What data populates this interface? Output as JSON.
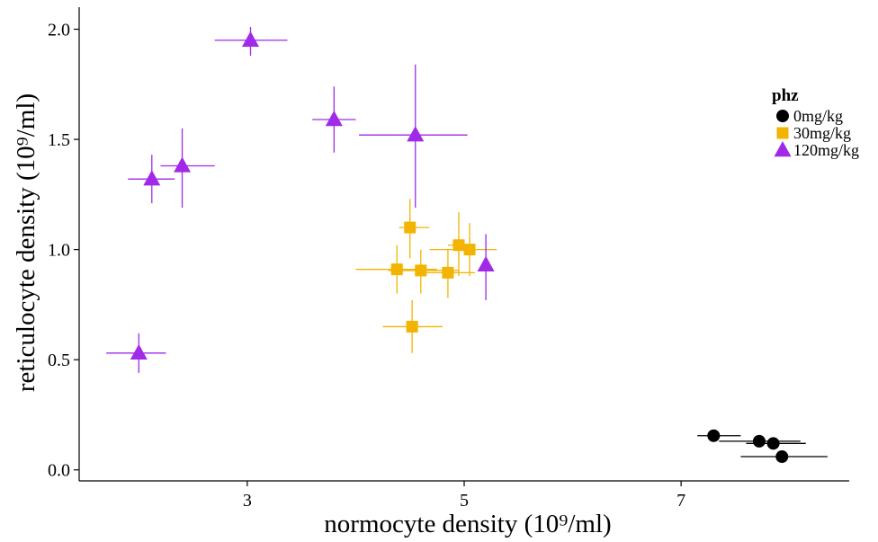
{
  "chart_data": {
    "type": "scatter",
    "xlabel": "normocyte density (10⁹/ml)",
    "ylabel": "reticulocyte density (10⁹/ml)",
    "xlim": [
      1.45,
      8.55
    ],
    "ylim": [
      -0.05,
      2.1
    ],
    "x_ticks": [
      3,
      5,
      7
    ],
    "y_ticks": [
      0.0,
      0.5,
      1.0,
      1.5,
      2.0
    ],
    "x_tick_labels": [
      "3",
      "5",
      "7"
    ],
    "y_tick_labels": [
      "0.0",
      "0.5",
      "1.0",
      "1.5",
      "2.0"
    ],
    "grid": false,
    "legend": {
      "title": "phz",
      "position": "top-right"
    },
    "series": [
      {
        "name": "0mg/kg",
        "marker": "circle",
        "color": "#000000",
        "points": [
          {
            "x": 7.3,
            "y": 0.155,
            "xerr": [
              7.15,
              7.55
            ],
            "yerr": [
              0.155,
              0.155
            ]
          },
          {
            "x": 7.72,
            "y": 0.13,
            "xerr": [
              7.35,
              8.1
            ],
            "yerr": [
              0.13,
              0.13
            ]
          },
          {
            "x": 7.85,
            "y": 0.12,
            "xerr": [
              7.6,
              8.15
            ],
            "yerr": [
              0.12,
              0.12
            ]
          },
          {
            "x": 7.93,
            "y": 0.06,
            "xerr": [
              7.55,
              8.35
            ],
            "yerr": [
              0.06,
              0.06
            ]
          }
        ]
      },
      {
        "name": "30mg/kg",
        "marker": "square",
        "color": "#F2B400",
        "points": [
          {
            "x": 4.52,
            "y": 0.65,
            "xerr": [
              4.25,
              4.8
            ],
            "yerr": [
              0.53,
              0.77
            ]
          },
          {
            "x": 4.38,
            "y": 0.91,
            "xerr": [
              4.0,
              4.75
            ],
            "yerr": [
              0.8,
              1.02
            ]
          },
          {
            "x": 4.5,
            "y": 1.1,
            "xerr": [
              4.4,
              4.68
            ],
            "yerr": [
              0.96,
              1.23
            ]
          },
          {
            "x": 4.6,
            "y": 0.905,
            "xerr": [
              4.3,
              4.95
            ],
            "yerr": [
              0.8,
              1.0
            ]
          },
          {
            "x": 4.85,
            "y": 0.895,
            "xerr": [
              4.65,
              5.1
            ],
            "yerr": [
              0.78,
              1.0
            ]
          },
          {
            "x": 4.95,
            "y": 1.02,
            "xerr": [
              4.85,
              5.08
            ],
            "yerr": [
              0.88,
              1.17
            ]
          },
          {
            "x": 5.05,
            "y": 1.0,
            "xerr": [
              4.68,
              5.3
            ],
            "yerr": [
              0.88,
              1.12
            ]
          }
        ]
      },
      {
        "name": "120mg/kg",
        "marker": "triangle",
        "color": "#A02AE8",
        "points": [
          {
            "x": 2.0,
            "y": 0.53,
            "xerr": [
              1.7,
              2.25
            ],
            "yerr": [
              0.44,
              0.62
            ]
          },
          {
            "x": 2.12,
            "y": 1.32,
            "xerr": [
              1.9,
              2.33
            ],
            "yerr": [
              1.21,
              1.43
            ]
          },
          {
            "x": 2.4,
            "y": 1.38,
            "xerr": [
              2.2,
              2.7
            ],
            "yerr": [
              1.19,
              1.55
            ]
          },
          {
            "x": 3.03,
            "y": 1.95,
            "xerr": [
              2.7,
              3.37
            ],
            "yerr": [
              1.88,
              2.01
            ]
          },
          {
            "x": 3.8,
            "y": 1.59,
            "xerr": [
              3.6,
              4.0
            ],
            "yerr": [
              1.44,
              1.74
            ]
          },
          {
            "x": 4.55,
            "y": 1.52,
            "xerr": [
              4.03,
              5.03
            ],
            "yerr": [
              1.19,
              1.84
            ]
          },
          {
            "x": 5.2,
            "y": 0.93,
            "xerr": [
              5.2,
              5.2
            ],
            "yerr": [
              0.77,
              1.07
            ]
          }
        ]
      }
    ]
  }
}
